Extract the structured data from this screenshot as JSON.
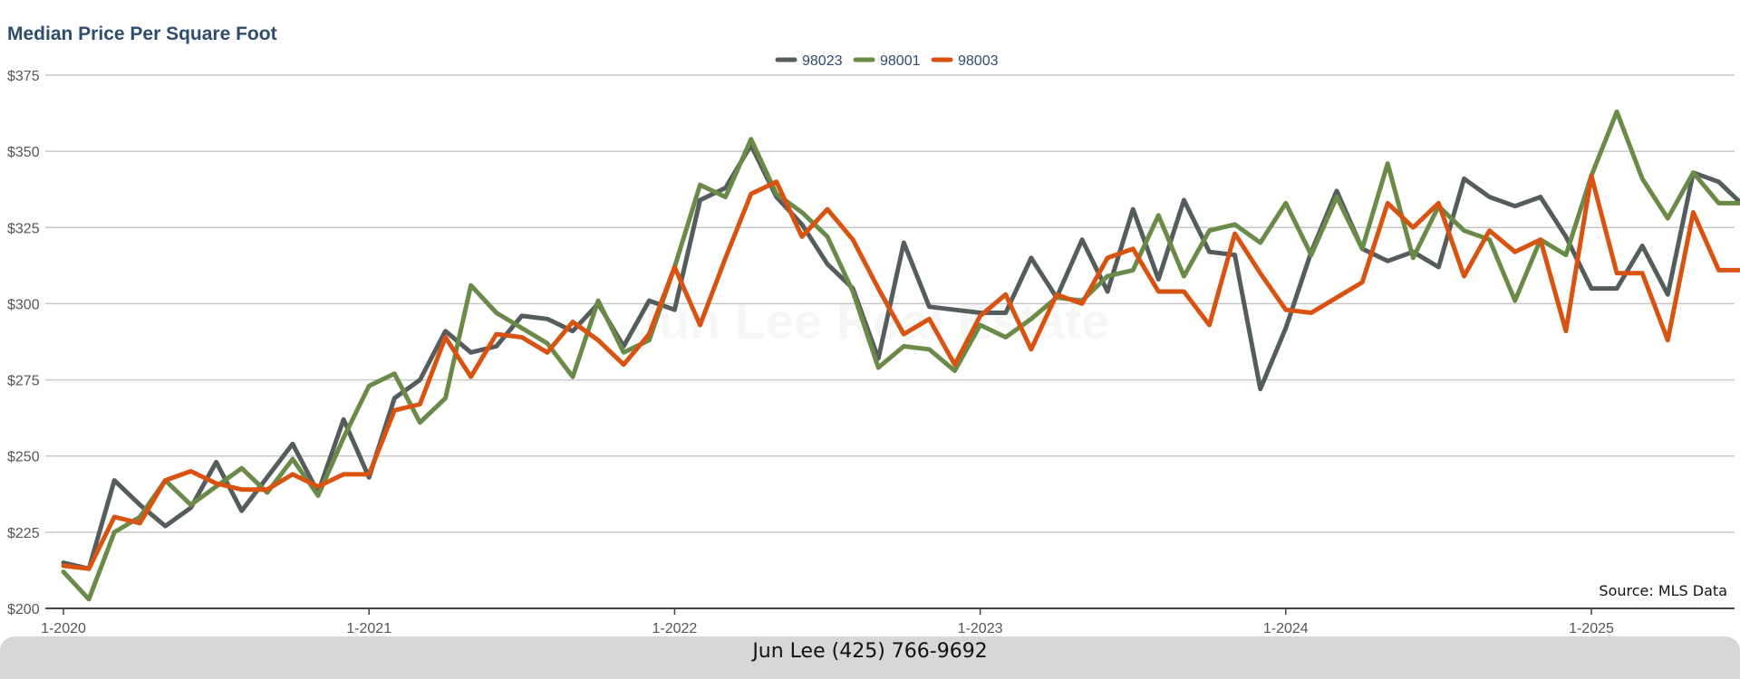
{
  "header": {
    "title": "Median Price Per Square Foot"
  },
  "watermark": "Jun Lee Real Estate",
  "source_note": "Source: MLS Data",
  "footer": {
    "contact": "Jun Lee (425) 766-9692"
  },
  "colors": {
    "title": "#2f4b6e",
    "98023": "#545c5e",
    "98001": "#6a8a47",
    "98003": "#d9520f",
    "footer_bg": "#d7d7d7"
  },
  "chart_data": {
    "type": "line",
    "title": "Median Price Per Square Foot",
    "xlabel": "",
    "ylabel": "",
    "ylim": [
      200,
      375
    ],
    "yticks": [
      200,
      225,
      250,
      275,
      300,
      325,
      350,
      375
    ],
    "ytick_labels": [
      "$200",
      "$225",
      "$250",
      "$275",
      "$300",
      "$325",
      "$350",
      "$375"
    ],
    "xtick_labels": [
      "1-2020",
      "1-2021",
      "1-2022",
      "1-2023",
      "1-2024",
      "1-2025"
    ],
    "xtick_indices": [
      0,
      12,
      24,
      36,
      48,
      60
    ],
    "grid": true,
    "legend_position": "top-center",
    "x": [
      "1-2020",
      "2-2020",
      "3-2020",
      "4-2020",
      "5-2020",
      "6-2020",
      "7-2020",
      "8-2020",
      "9-2020",
      "10-2020",
      "11-2020",
      "12-2020",
      "1-2021",
      "2-2021",
      "3-2021",
      "4-2021",
      "5-2021",
      "6-2021",
      "7-2021",
      "8-2021",
      "9-2021",
      "10-2021",
      "11-2021",
      "12-2021",
      "1-2022",
      "2-2022",
      "3-2022",
      "4-2022",
      "5-2022",
      "6-2022",
      "7-2022",
      "8-2022",
      "9-2022",
      "10-2022",
      "11-2022",
      "12-2022",
      "1-2023",
      "2-2023",
      "3-2023",
      "4-2023",
      "5-2023",
      "6-2023",
      "7-2023",
      "8-2023",
      "9-2023",
      "10-2023",
      "11-2023",
      "12-2023",
      "1-2024",
      "2-2024",
      "3-2024",
      "4-2024",
      "5-2024",
      "6-2024",
      "7-2024",
      "8-2024",
      "9-2024",
      "10-2024",
      "11-2024",
      "12-2024",
      "1-2025",
      "2-2025",
      "3-2025",
      "4-2025",
      "5-2025",
      "6-2025",
      "7-2025"
    ],
    "series": [
      {
        "name": "98023",
        "color": "#545c5e",
        "values": [
          215,
          213,
          242,
          234,
          227,
          233,
          248,
          232,
          243,
          254,
          238,
          262,
          243,
          269,
          275,
          291,
          284,
          286,
          296,
          295,
          291,
          300,
          286,
          301,
          298,
          334,
          338,
          352,
          335,
          326,
          313,
          305,
          282,
          320,
          299,
          298,
          297,
          297,
          315,
          302,
          321,
          304,
          331,
          308,
          334,
          317,
          316,
          272,
          292,
          317,
          337,
          318,
          314,
          317,
          312,
          341,
          335,
          332,
          335,
          322,
          305,
          305,
          319,
          303,
          343,
          340,
          332
        ]
      },
      {
        "name": "98001",
        "color": "#6a8a47",
        "values": [
          212,
          203,
          225,
          230,
          242,
          234,
          240,
          246,
          238,
          249,
          237,
          256,
          273,
          277,
          261,
          269,
          306,
          297,
          292,
          287,
          276,
          301,
          284,
          288,
          312,
          339,
          335,
          354,
          336,
          330,
          322,
          304,
          279,
          286,
          285,
          278,
          293,
          289,
          295,
          302,
          301,
          309,
          311,
          329,
          309,
          324,
          326,
          320,
          333,
          316,
          335,
          318,
          346,
          315,
          332,
          324,
          321,
          301,
          321,
          316,
          342,
          363,
          341,
          328,
          343,
          333,
          333
        ]
      },
      {
        "name": "98003",
        "color": "#d9520f",
        "values": [
          214,
          213,
          230,
          228,
          242,
          245,
          241,
          239,
          239,
          244,
          240,
          244,
          244,
          265,
          267,
          289,
          276,
          290,
          289,
          284,
          294,
          288,
          280,
          290,
          312,
          293,
          315,
          336,
          340,
          322,
          331,
          321,
          305,
          290,
          295,
          280,
          296,
          303,
          285,
          303,
          300,
          315,
          318,
          304,
          304,
          293,
          323,
          310,
          298,
          297,
          302,
          307,
          333,
          325,
          333,
          309,
          324,
          317,
          321,
          291,
          342,
          310,
          310,
          288,
          330,
          311,
          311
        ]
      }
    ]
  }
}
